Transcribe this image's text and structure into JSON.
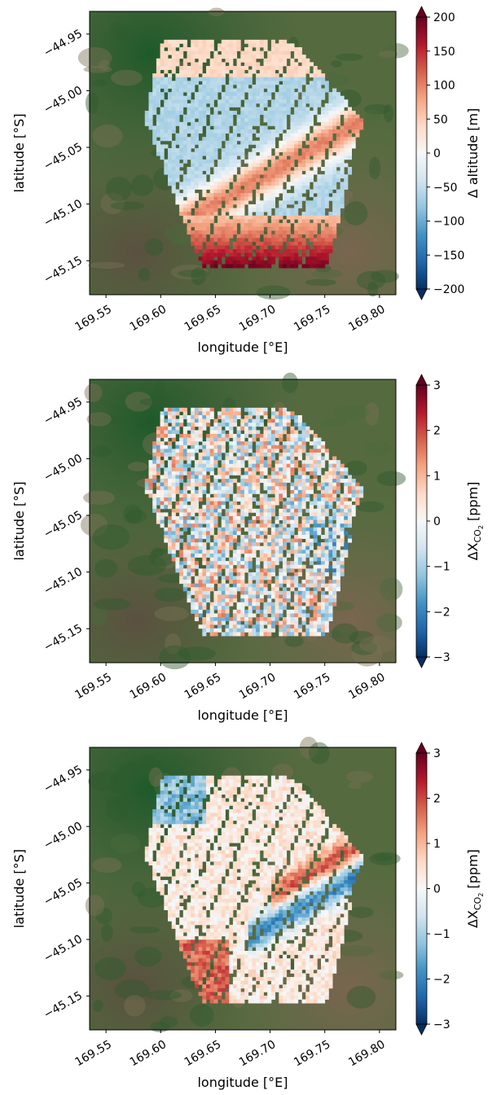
{
  "figure": {
    "chart_data": [
      {
        "type": "heatmap",
        "title": "",
        "xlabel": "longitude [°E]",
        "ylabel": "latitude [°S]",
        "xlim": [
          169.535,
          169.815
        ],
        "ylim": [
          -45.18,
          -44.93
        ],
        "x_ticks": [
          169.55,
          169.6,
          169.65,
          169.7,
          169.75,
          169.8
        ],
        "x_tick_labels": [
          "169.55",
          "169.60",
          "169.65",
          "169.70",
          "169.75",
          "169.80"
        ],
        "y_ticks": [
          -44.95,
          -45.0,
          -45.05,
          -45.1,
          -45.15
        ],
        "y_tick_labels": [
          "−44.95",
          "−45.00",
          "−45.05",
          "−45.10",
          "−45.15"
        ],
        "colorbar": {
          "label": "Δ altitude [m]",
          "range": [
            -200,
            200
          ],
          "ticks": [
            200,
            150,
            100,
            50,
            0,
            -50,
            -100,
            -150,
            -200
          ],
          "tick_labels": [
            "200",
            "150",
            "100",
            "50",
            "0",
            "−50",
            "−100",
            "−150",
            "−200"
          ],
          "cmap": "RdBu_r",
          "extend": "both"
        },
        "background": "satellite imagery",
        "field": "altitude"
      },
      {
        "type": "heatmap",
        "title": "",
        "xlabel": "longitude [°E]",
        "ylabel": "latitude [°S]",
        "xlim": [
          169.535,
          169.815
        ],
        "ylim": [
          -45.18,
          -44.93
        ],
        "x_ticks": [
          169.55,
          169.6,
          169.65,
          169.7,
          169.75,
          169.8
        ],
        "x_tick_labels": [
          "169.55",
          "169.60",
          "169.65",
          "169.70",
          "169.75",
          "169.80"
        ],
        "y_ticks": [
          -44.95,
          -45.0,
          -45.05,
          -45.1,
          -45.15
        ],
        "y_tick_labels": [
          "−44.95",
          "−45.00",
          "−45.05",
          "−45.10",
          "−45.15"
        ],
        "colorbar": {
          "label_main": "ΔX",
          "label_sub": "CO",
          "label_subsub": "2",
          "label_unit": " [ppm]",
          "range": [
            -3,
            3
          ],
          "ticks": [
            3,
            2,
            1,
            0,
            -1,
            -2,
            -3
          ],
          "tick_labels": [
            "3",
            "2",
            "1",
            "0",
            "−1",
            "−2",
            "−3"
          ],
          "cmap": "RdBu_r",
          "extend": "both"
        },
        "background": "satellite imagery",
        "field": "noise"
      },
      {
        "type": "heatmap",
        "title": "",
        "xlabel": "longitude [°E]",
        "ylabel": "latitude [°S]",
        "xlim": [
          169.535,
          169.815
        ],
        "ylim": [
          -45.18,
          -44.93
        ],
        "x_ticks": [
          169.55,
          169.6,
          169.65,
          169.7,
          169.75,
          169.8
        ],
        "x_tick_labels": [
          "169.55",
          "169.60",
          "169.65",
          "169.70",
          "169.75",
          "169.80"
        ],
        "y_ticks": [
          -44.95,
          -45.0,
          -45.05,
          -45.1,
          -45.15
        ],
        "y_tick_labels": [
          "−44.95",
          "−45.00",
          "−45.05",
          "−45.10",
          "−45.15"
        ],
        "colorbar": {
          "label_main": "ΔX",
          "label_sub": "CO",
          "label_subsub": "2",
          "label_unit": " [ppm]",
          "range": [
            -3,
            3
          ],
          "ticks": [
            3,
            2,
            1,
            0,
            -1,
            -2,
            -3
          ],
          "tick_labels": [
            "3",
            "2",
            "1",
            "0",
            "−1",
            "−2",
            "−3"
          ],
          "cmap": "RdBu_r",
          "extend": "both"
        },
        "background": "satellite imagery",
        "field": "terrain-correlated"
      }
    ]
  }
}
